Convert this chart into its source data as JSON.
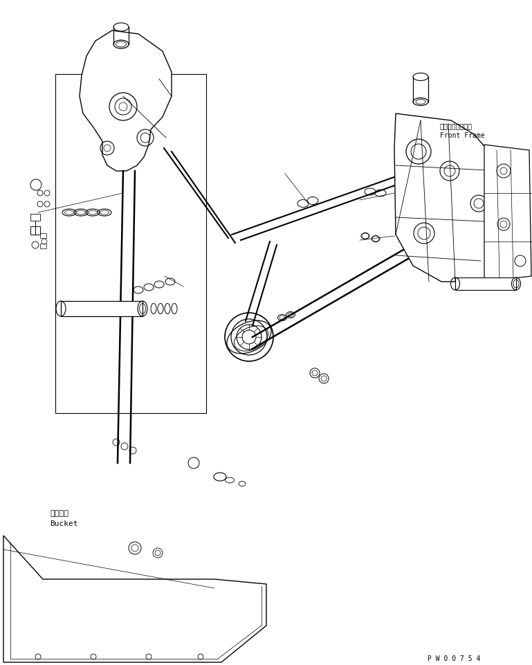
{
  "title": "",
  "background_color": "#ffffff",
  "line_color": "#000000",
  "label_front_frame_jp": "フロントフレーム",
  "label_front_frame_en": "Front Frame",
  "label_bucket_jp": "バケット",
  "label_bucket_en": "Bucket",
  "label_part_number": "P W 0 0 7 5 4",
  "annotation_font_size": 7,
  "label_font_size": 8
}
